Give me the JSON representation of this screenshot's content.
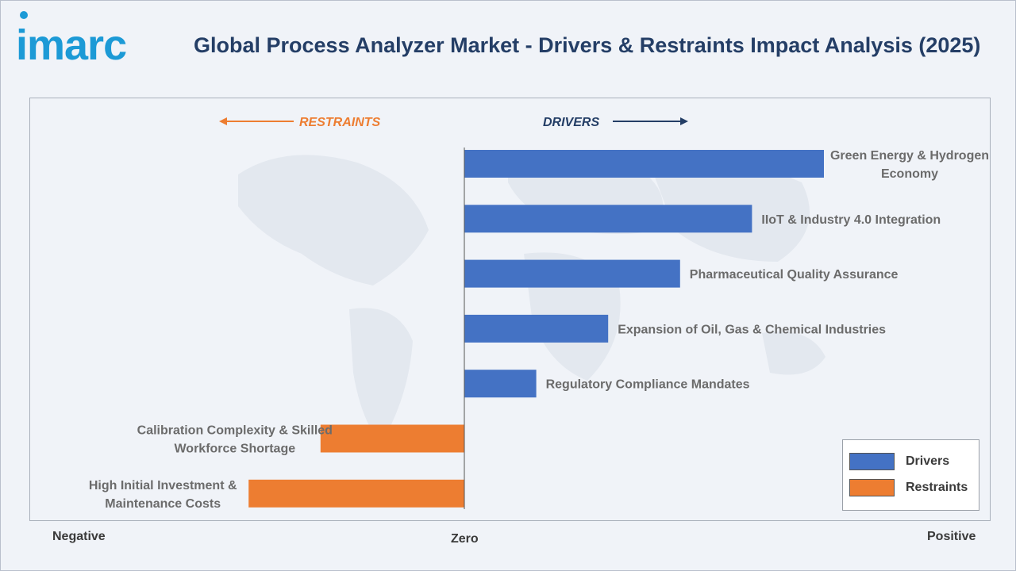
{
  "header": {
    "logo_text": "imarc",
    "title": "Global Process Analyzer Market - Drivers & Restraints Impact Analysis (2025)"
  },
  "colors": {
    "drivers": "#4472c4",
    "restraints": "#ed7d31",
    "restraints_text": "#ed7d31",
    "drivers_text": "#243e66"
  },
  "chart_data": {
    "type": "bar",
    "orientation": "horizontal",
    "direction_labels": {
      "restraints": "RESTRAINTS",
      "drivers": "DRIVERS"
    },
    "axis_labels": {
      "negative": "Negative",
      "zero": "Zero",
      "positive": "Positive"
    },
    "categories": [
      {
        "label": "Green Energy & Hydrogen Economy",
        "lines": [
          "Green Energy & Hydrogen",
          "Economy"
        ],
        "value": 5.0,
        "group": "drivers"
      },
      {
        "label": "IIoT & Industry 4.0 Integration",
        "lines": [
          "IIoT & Industry 4.0 Integration"
        ],
        "value": 4.0,
        "group": "drivers"
      },
      {
        "label": "Pharmaceutical Quality Assurance",
        "lines": [
          "Pharmaceutical Quality Assurance"
        ],
        "value": 3.0,
        "group": "drivers"
      },
      {
        "label": "Expansion of Oil, Gas & Chemical Industries",
        "lines": [
          "Expansion of Oil, Gas & Chemical Industries"
        ],
        "value": 2.0,
        "group": "drivers"
      },
      {
        "label": "Regulatory Compliance Mandates",
        "lines": [
          "Regulatory Compliance Mandates"
        ],
        "value": 1.0,
        "group": "drivers"
      },
      {
        "label": "Calibration Complexity & Skilled Workforce Shortage",
        "lines": [
          "Calibration Complexity & Skilled",
          "Workforce Shortage"
        ],
        "value": -2.0,
        "group": "restraints"
      },
      {
        "label": "High Initial Investment & Maintenance Costs",
        "lines": [
          "High Initial Investment &",
          "Maintenance Costs"
        ],
        "value": -3.0,
        "group": "restraints"
      }
    ],
    "legend": [
      {
        "name": "Drivers",
        "key": "drivers"
      },
      {
        "name": "Restraints",
        "key": "restraints"
      }
    ],
    "legend_position": "bottom-right",
    "grid": false
  }
}
